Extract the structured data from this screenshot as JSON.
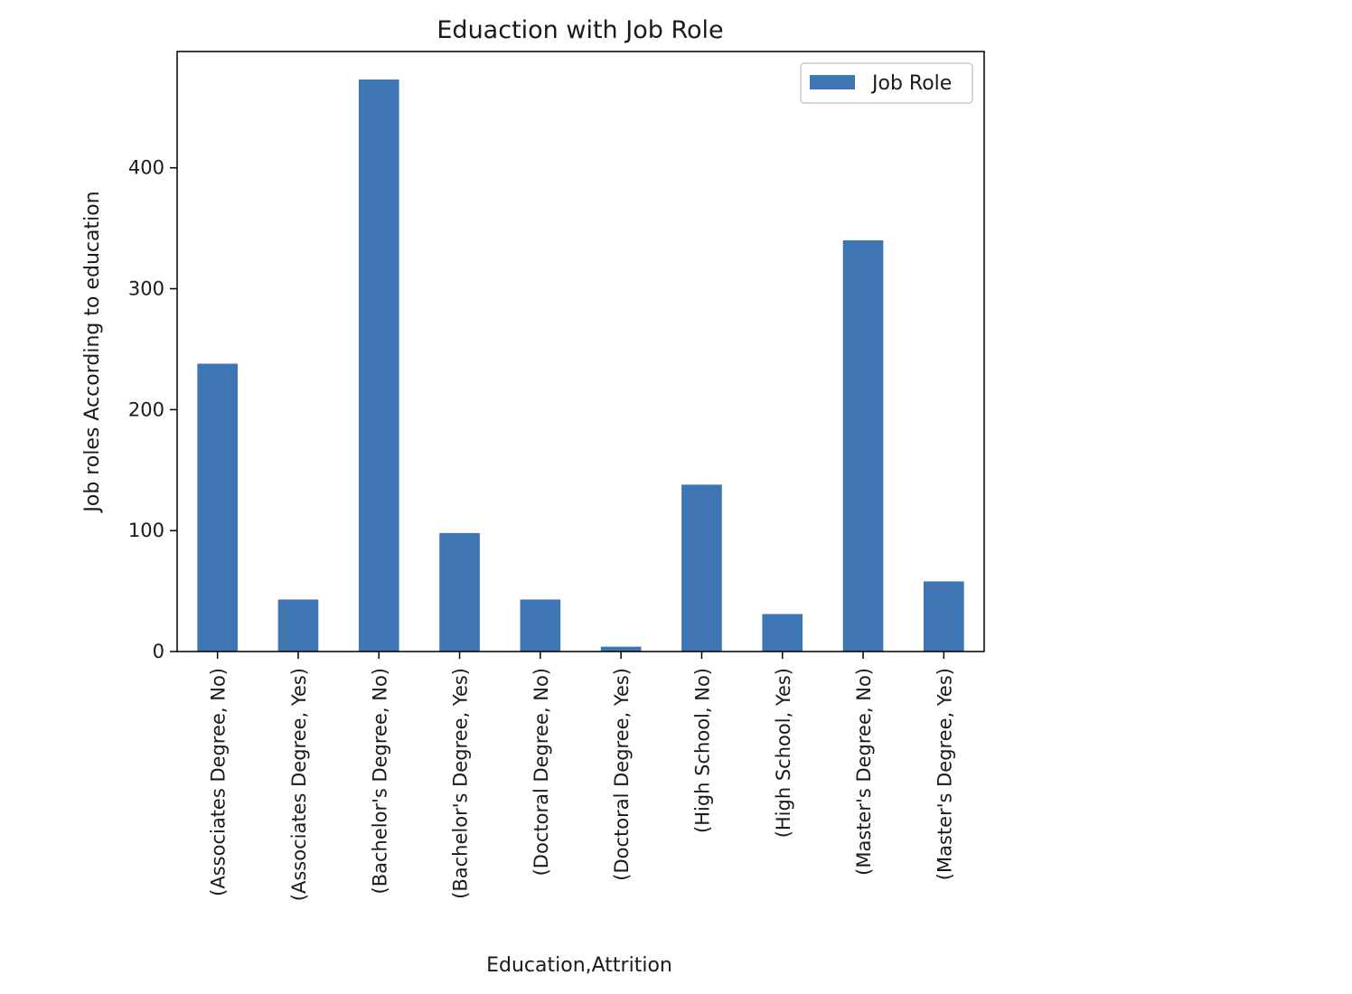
{
  "chart_data": {
    "type": "bar",
    "title": "Eduaction with Job Role",
    "xlabel": "Education,Attrition",
    "ylabel": "Job roles According to education",
    "categories": [
      "(Associates Degree, No)",
      "(Associates Degree, Yes)",
      "(Bachelor's Degree, No)",
      "(Bachelor's Degree, Yes)",
      "(Doctoral Degree, No)",
      "(Doctoral Degree, Yes)",
      "(High School, No)",
      "(High School, Yes)",
      "(Master's Degree, No)",
      "(Master's Degree, Yes)"
    ],
    "series": [
      {
        "name": "Job Role",
        "color": "#3d76b3",
        "values": [
          238,
          43,
          473,
          98,
          43,
          4,
          138,
          31,
          340,
          58
        ]
      }
    ],
    "ylim": [
      0,
      473
    ],
    "yticks": [
      0,
      100,
      200,
      300,
      400
    ],
    "legend_position": "top-right",
    "grid": false
  }
}
